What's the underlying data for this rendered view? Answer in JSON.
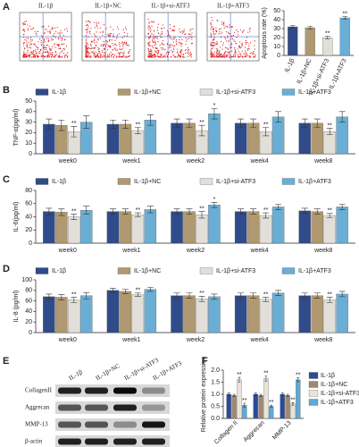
{
  "panel_a_flow": {
    "panel": "A",
    "titles": [
      "IL-1β",
      "IL-1β+NC",
      "IL-1β+si-ATF3",
      "IL-1β+ATF3"
    ]
  },
  "panel_e_blot": {
    "panel": "E",
    "columns": [
      "IL-1β",
      "IL-1β+NC",
      "IL-1β+si-ATF3",
      "IL-1β+ATF3"
    ],
    "rows": [
      "CollagenII",
      "Aggrecan",
      "MMP-13",
      "β-actin"
    ]
  },
  "chart_data": [
    {
      "type": "bar",
      "y_label": "Apoptosis rate (%)",
      "categories": [
        "IL-1β",
        "IL-1β+NC",
        "IL-1β+si-ATF3",
        "IL-1β+ATF3"
      ],
      "values": [
        32,
        31,
        20,
        42
      ],
      "errors": [
        1.5,
        1.5,
        1.5,
        1.5
      ],
      "significance": [
        null,
        null,
        "**",
        "**"
      ],
      "colors": [
        "#2f4b8a",
        "#b09870",
        "#e2dfd8",
        "#6aaed6"
      ],
      "ylim": [
        0,
        50
      ],
      "yticks": [
        0,
        10,
        20,
        30,
        40,
        50
      ]
    },
    {
      "type": "bar",
      "panel": "B",
      "y_label": "TNF-α(pg/ml)",
      "categories": [
        "week0",
        "week1",
        "week2",
        "week4",
        "week8"
      ],
      "ylim": [
        0,
        50
      ],
      "yticks": [
        0,
        10,
        20,
        30,
        40,
        50
      ],
      "series": [
        {
          "name": "IL-1β",
          "color": "#2f4b8a",
          "values": [
            28,
            28,
            29,
            29,
            29
          ],
          "errors": [
            5,
            4,
            4,
            4,
            4
          ],
          "significance": [
            null,
            null,
            null,
            null,
            null
          ]
        },
        {
          "name": "IL-1β+NC",
          "color": "#b09870",
          "values": [
            27,
            28,
            29,
            29,
            29
          ],
          "errors": [
            5,
            4,
            4,
            4,
            4
          ],
          "significance": [
            null,
            null,
            null,
            null,
            null
          ]
        },
        {
          "name": "IL-1β+si-ATF3",
          "color": "#e2dfd8",
          "values": [
            21,
            22,
            22,
            21,
            21
          ],
          "errors": [
            5,
            3,
            5,
            4,
            3
          ],
          "significance": [
            "**",
            "**",
            "**",
            "**",
            "**"
          ]
        },
        {
          "name": "IL-1β+ATF3",
          "color": "#6aaed6",
          "values": [
            30,
            32,
            38,
            35,
            35
          ],
          "errors": [
            6,
            5,
            5,
            5,
            5
          ],
          "significance": [
            null,
            null,
            "*",
            null,
            null
          ]
        }
      ]
    },
    {
      "type": "bar",
      "panel": "C",
      "y_label": "IL-6(pg/ml)",
      "categories": [
        "week0",
        "week1",
        "week2",
        "week4",
        "week8"
      ],
      "ylim": [
        0,
        80
      ],
      "yticks": [
        0,
        20,
        40,
        60,
        80
      ],
      "series": [
        {
          "name": "IL-1β",
          "color": "#2f4b8a",
          "values": [
            48,
            48,
            48,
            48,
            49
          ],
          "errors": [
            5,
            4,
            4,
            4,
            4
          ],
          "significance": [
            null,
            null,
            null,
            null,
            null
          ]
        },
        {
          "name": "IL-1β+NC",
          "color": "#b09870",
          "values": [
            47,
            48,
            48,
            48,
            48
          ],
          "errors": [
            5,
            4,
            4,
            4,
            4
          ],
          "significance": [
            null,
            null,
            null,
            null,
            null
          ]
        },
        {
          "name": "IL-1β+si-ATF3",
          "color": "#e2dfd8",
          "values": [
            40,
            43,
            43,
            42,
            42
          ],
          "errors": [
            4,
            3,
            5,
            4,
            3
          ],
          "significance": [
            "**",
            "**",
            "**",
            "**",
            "**"
          ]
        },
        {
          "name": "IL-1β+ATF3",
          "color": "#6aaed6",
          "values": [
            50,
            51,
            58,
            55,
            55
          ],
          "errors": [
            6,
            5,
            4,
            4,
            4
          ],
          "significance": [
            null,
            null,
            "*",
            null,
            null
          ]
        }
      ]
    },
    {
      "type": "bar",
      "panel": "D",
      "y_label": "IL-8 (pg/ml)",
      "categories": [
        "week0",
        "week1",
        "week2",
        "week4",
        "week8"
      ],
      "ylim": [
        0,
        100
      ],
      "yticks": [
        0,
        20,
        40,
        60,
        80,
        100
      ],
      "series": [
        {
          "name": "IL-1β",
          "color": "#2f4b8a",
          "values": [
            68,
            80,
            70,
            70,
            70
          ],
          "errors": [
            5,
            4,
            5,
            5,
            5
          ],
          "significance": [
            null,
            null,
            null,
            null,
            null
          ]
        },
        {
          "name": "IL-1β+NC",
          "color": "#b09870",
          "values": [
            67,
            78,
            70,
            70,
            70
          ],
          "errors": [
            5,
            4,
            5,
            5,
            5
          ],
          "significance": [
            null,
            null,
            null,
            null,
            null
          ]
        },
        {
          "name": "IL-1β+si-ATF3",
          "color": "#e2dfd8",
          "values": [
            62,
            72,
            64,
            63,
            62
          ],
          "errors": [
            5,
            3,
            5,
            4,
            5
          ],
          "significance": [
            "**",
            "**",
            "**",
            "**",
            "**"
          ]
        },
        {
          "name": "IL-1β+ATF3",
          "color": "#6aaed6",
          "values": [
            70,
            82,
            68,
            75,
            73
          ],
          "errors": [
            6,
            4,
            5,
            5,
            5
          ],
          "significance": [
            null,
            null,
            null,
            null,
            null
          ]
        }
      ]
    },
    {
      "type": "bar",
      "panel": "F",
      "y_label": "Relative protein expression",
      "categories": [
        "Collagen II",
        "Aggrecan",
        "MMP-13"
      ],
      "ylim": [
        0,
        2
      ],
      "yticks": [
        {
          "value": 0,
          "label": "0.0"
        },
        {
          "value": 0.5,
          "label": "0.5"
        },
        {
          "value": 1,
          "label": "1.0"
        },
        {
          "value": 1.5,
          "label": "1.5"
        },
        {
          "value": 2,
          "label": "2.0"
        }
      ],
      "series": [
        {
          "name": "IL-1β",
          "color": "#2a4a9a",
          "values": [
            1.0,
            1.0,
            1.0
          ],
          "errors": [
            0.05,
            0.05,
            0.05
          ],
          "significance": [
            null,
            null,
            null
          ]
        },
        {
          "name": "IL-1β+NC",
          "color": "#a08870",
          "values": [
            0.95,
            0.95,
            0.95
          ],
          "errors": [
            0.05,
            0.05,
            0.05
          ],
          "significance": [
            null,
            null,
            null
          ]
        },
        {
          "name": "IL-1β+si-ATF3",
          "color": "#e8e4d8",
          "values": [
            1.6,
            1.65,
            0.6
          ],
          "errors": [
            0.1,
            0.1,
            0.05
          ],
          "significance": [
            "**",
            "**",
            "**"
          ]
        },
        {
          "name": "IL-1β+ATF3",
          "color": "#60a8d8",
          "values": [
            0.55,
            0.5,
            1.6
          ],
          "errors": [
            0.08,
            0.05,
            0.08
          ],
          "significance": [
            "**",
            "**",
            "**"
          ]
        }
      ]
    }
  ]
}
